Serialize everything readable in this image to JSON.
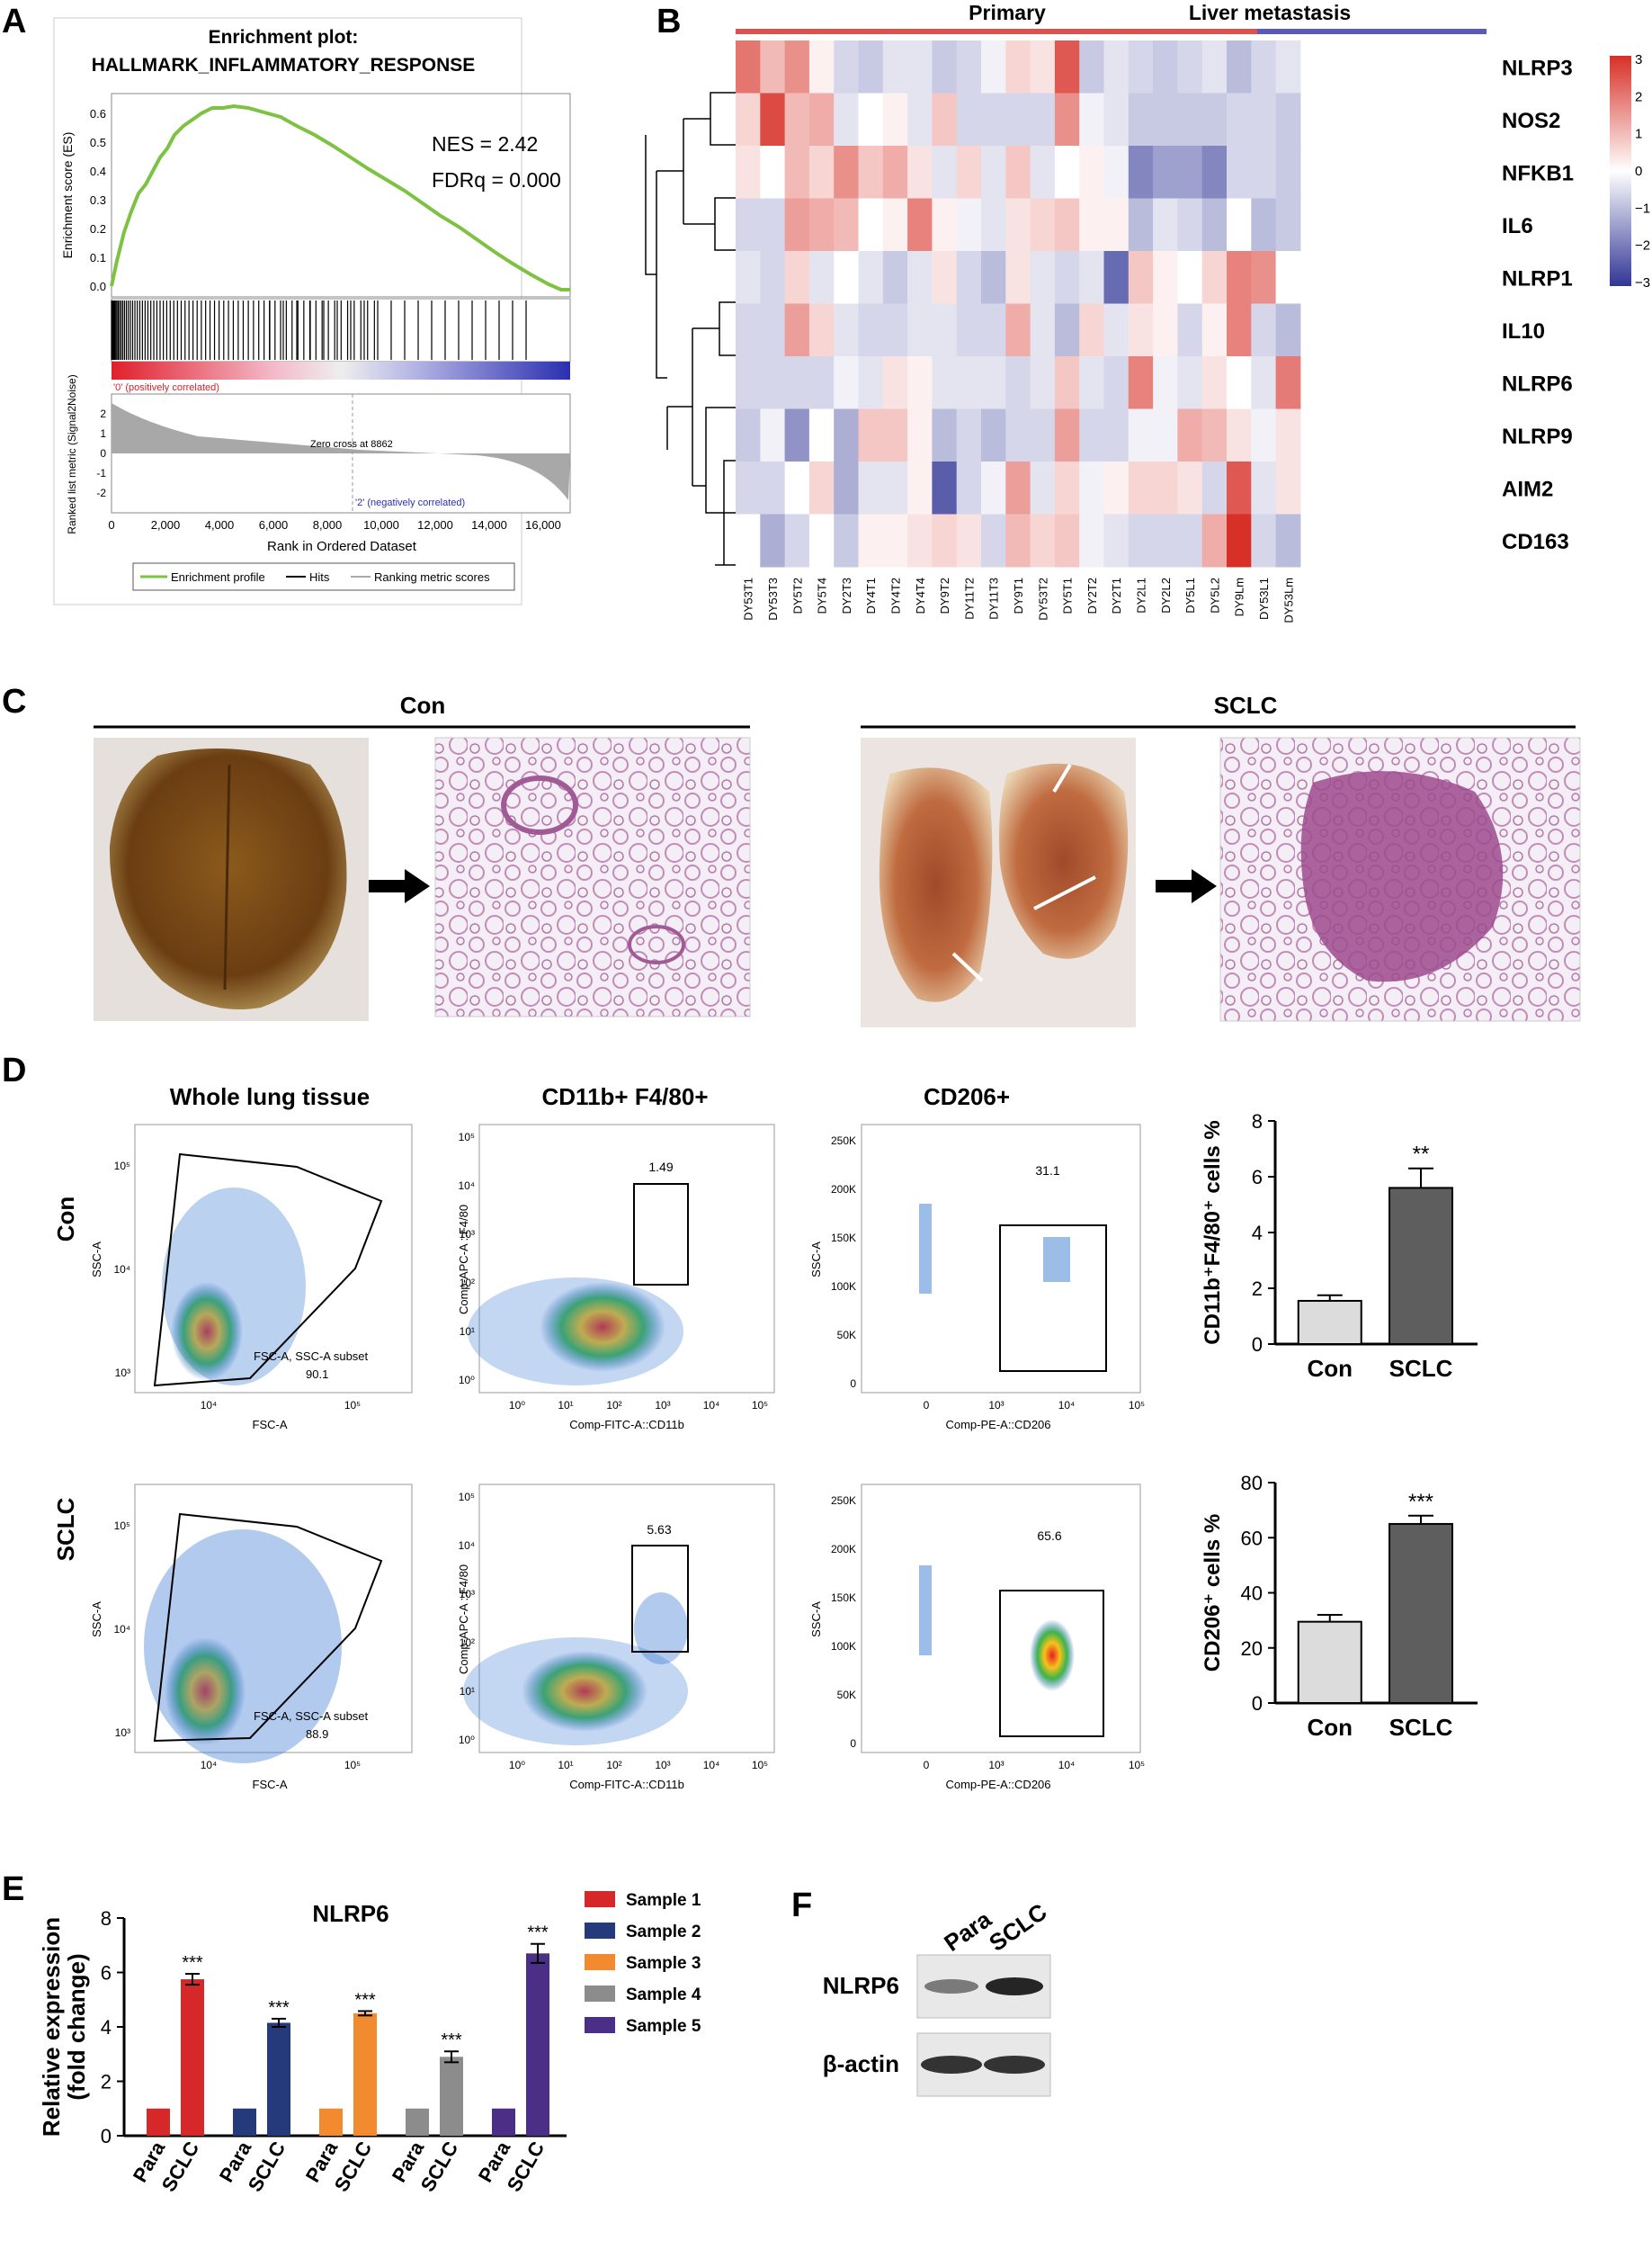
{
  "panel_labels": [
    "A",
    "B",
    "C",
    "D",
    "E",
    "F"
  ],
  "colors": {
    "gsea_curve": "#7dc242",
    "heat_high": "#d73027",
    "heat_low": "#313695",
    "primary_bar": "#d9534f",
    "metastasis_bar": "#5a5ab8",
    "con_bar": "#dcdcdc",
    "sclc_bar": "#5e5e5e",
    "he_stain": "#d4a0c8"
  },
  "panelA": {
    "title_line1": "Enrichment plot:",
    "title_line2": "HALLMARK_INFLAMMATORY_RESPONSE",
    "nes": "NES = 2.42",
    "fdr": "FDRq = 0.000",
    "es_ylabel": "Enrichment score (ES)",
    "es_ticks": [
      "0.6",
      "0.5",
      "0.4",
      "0.3",
      "0.2",
      "0.1",
      "0.0"
    ],
    "rank_ylabel": "Ranked list metric (Signal2Noise)",
    "rank_ticks": [
      "2",
      "1",
      "0",
      "-1",
      "-2"
    ],
    "x_ticks": [
      "0",
      "2,000",
      "4,000",
      "6,000",
      "8,000",
      "10,000",
      "12,000",
      "14,000",
      "16,000"
    ],
    "xlabel": "Rank in Ordered Dataset",
    "pos_label": "'0' (positively correlated)",
    "neg_label": "'2' (negatively correlated)",
    "zero_cross": "Zero cross at 8862",
    "legend": [
      "Enrichment profile",
      "Hits",
      "Ranking metric scores"
    ]
  },
  "panelB": {
    "group_primary": "Primary",
    "group_metastasis": "Liver metastasis",
    "genes": [
      "NLRP3",
      "NOS2",
      "NFKB1",
      "IL6",
      "NLRP1",
      "IL10",
      "NLRP6",
      "NLRP9",
      "AIM2",
      "CD163"
    ],
    "samples": [
      "DY53T1",
      "DY53T3",
      "DY5T2",
      "DY5T4",
      "DY2T3",
      "DY4T1",
      "DY4T2",
      "DY4T4",
      "DY9T2",
      "DY11T2",
      "DY11T3",
      "DY9T1",
      "DY53T2",
      "DY5T1",
      "DY2T2",
      "DY2T1",
      "DY2L1",
      "DY2L2",
      "DY5L1",
      "DY5L2",
      "DY9Lm",
      "DY53L1",
      "DY53Lm"
    ],
    "scale_ticks": [
      "3",
      "2",
      "1",
      "0",
      "−1",
      "−2",
      "−3"
    ],
    "values": [
      [
        2.0,
        1.0,
        1.6,
        0.2,
        -0.6,
        -0.8,
        -0.4,
        -0.4,
        -0.8,
        -0.6,
        -0.2,
        0.6,
        0.4,
        2.4,
        -0.8,
        -0.4,
        -0.6,
        -0.8,
        -0.6,
        -0.4,
        -1.0,
        -0.6,
        -0.4
      ],
      [
        0.6,
        2.6,
        1.0,
        1.2,
        -0.4,
        0.0,
        0.2,
        -0.4,
        0.8,
        -0.6,
        -0.6,
        -0.6,
        -0.6,
        1.6,
        -0.2,
        -0.4,
        -0.8,
        -0.8,
        -0.8,
        -0.8,
        -0.6,
        -0.6,
        -0.8
      ],
      [
        0.4,
        0.0,
        1.0,
        0.6,
        1.6,
        0.8,
        1.2,
        0.4,
        -0.4,
        0.6,
        -0.4,
        0.8,
        -0.4,
        0.0,
        0.2,
        -0.2,
        -1.8,
        -1.4,
        -1.4,
        -1.8,
        -0.6,
        -0.6,
        -0.8
      ],
      [
        -0.6,
        -0.6,
        1.4,
        1.2,
        1.0,
        0.0,
        0.2,
        1.8,
        0.2,
        -0.2,
        -0.4,
        0.4,
        0.6,
        0.8,
        0.2,
        0.2,
        -1.0,
        -0.4,
        -0.6,
        -1.0,
        0.0,
        -1.0,
        -0.8
      ],
      [
        -0.4,
        -0.6,
        0.6,
        -0.4,
        0.0,
        -0.4,
        -0.8,
        -0.4,
        0.4,
        -0.6,
        -1.0,
        0.4,
        -0.4,
        -0.6,
        -0.4,
        -2.2,
        0.8,
        0.2,
        0.0,
        0.6,
        1.8,
        1.6,
        0.0
      ],
      [
        -0.6,
        -0.6,
        1.4,
        0.6,
        -0.4,
        -0.6,
        -0.6,
        -0.4,
        -0.4,
        -0.6,
        -0.6,
        1.2,
        -0.4,
        -1.0,
        0.6,
        -0.4,
        0.4,
        0.2,
        -0.6,
        0.2,
        1.8,
        -0.6,
        -1.0
      ],
      [
        -0.6,
        -0.6,
        -0.6,
        -0.6,
        -0.2,
        -0.4,
        0.4,
        0.2,
        -0.4,
        -0.4,
        -0.4,
        -0.6,
        -0.4,
        0.8,
        -0.4,
        -0.6,
        1.8,
        -0.2,
        -0.4,
        0.4,
        0.0,
        -0.4,
        1.9
      ],
      [
        -0.8,
        -0.2,
        -1.6,
        0.0,
        -1.2,
        0.8,
        0.8,
        0.2,
        -1.0,
        -0.6,
        -1.0,
        -0.6,
        -0.6,
        1.4,
        -0.6,
        -0.6,
        -0.2,
        -0.2,
        1.2,
        1.0,
        0.4,
        -0.2,
        0.4
      ],
      [
        -0.6,
        -0.6,
        0.0,
        0.6,
        -1.2,
        -0.4,
        -0.4,
        0.2,
        -2.4,
        -0.6,
        -0.2,
        1.4,
        -0.4,
        0.6,
        -0.2,
        0.2,
        0.6,
        0.6,
        0.4,
        -0.6,
        2.4,
        -0.4,
        0.4
      ],
      [
        0.0,
        -1.2,
        -0.6,
        0.0,
        -0.8,
        0.2,
        0.2,
        0.4,
        0.6,
        0.4,
        -0.6,
        1.0,
        0.6,
        0.8,
        -0.2,
        -0.4,
        -0.6,
        -0.6,
        -0.6,
        1.2,
        3.0,
        -0.6,
        -1.0
      ]
    ]
  },
  "panelC": {
    "con_label": "Con",
    "sclc_label": "SCLC"
  },
  "panelD": {
    "col_titles": [
      "Whole lung tissue",
      "CD11b+ F4/80+",
      "CD206+"
    ],
    "row_labels": [
      "Con",
      "SCLC"
    ],
    "fsc_axis": "FSC-A",
    "ssc_axis": "SSC-A",
    "fitc_axis": "Comp-FITC-A::CD11b",
    "apc_axis": "Comp-APC-A ::F4/80",
    "pe_axis": "Comp-PE-A::CD206",
    "gate_name": "FSC-A, SSC-A subset",
    "con_values": [
      "90.1",
      "1.49",
      "31.1"
    ],
    "sclc_values": [
      "88.9",
      "5.63",
      "65.6"
    ],
    "log_ticks_y": [
      "10⁵",
      "10⁴",
      "10³"
    ],
    "log_ticks_x": [
      "10⁴",
      "10⁵"
    ],
    "cd11b_ticks_x": [
      "10⁰",
      "10¹",
      "10²",
      "10³",
      "10⁴",
      "10⁵"
    ],
    "cd11b_ticks_y": [
      "10⁵",
      "10⁴",
      "10³",
      "10²",
      "10¹",
      "10⁰"
    ],
    "ssc_ticks": [
      "250K",
      "200K",
      "150K",
      "100K",
      "50K",
      "0"
    ],
    "cd206_ticks_x": [
      "0",
      "10³",
      "10⁴",
      "10⁵"
    ]
  },
  "chart_data": [
    {
      "type": "bar",
      "categories": [
        "Con",
        "SCLC"
      ],
      "values": [
        1.55,
        5.6
      ],
      "errors": [
        0.2,
        0.7
      ],
      "ylabel": "CD11b⁺F4/80⁺ cells %",
      "ylim": [
        0,
        8
      ],
      "yticks": [
        "0",
        "2",
        "4",
        "6",
        "8"
      ],
      "annotation": "**"
    },
    {
      "type": "bar",
      "categories": [
        "Con",
        "SCLC"
      ],
      "values": [
        29.5,
        65
      ],
      "errors": [
        2.5,
        3
      ],
      "ylabel": "CD206⁺ cells %",
      "ylim": [
        0,
        80
      ],
      "yticks": [
        "0",
        "20",
        "40",
        "60",
        "80"
      ],
      "annotation": "***"
    },
    {
      "type": "bar",
      "title": "NLRP6",
      "ylabel": "Relative expression (fold change)",
      "ylim": [
        0,
        8
      ],
      "yticks": [
        "0",
        "2",
        "4",
        "6",
        "8"
      ],
      "categories": [
        "Para",
        "SCLC"
      ],
      "series": [
        {
          "name": "Sample 1",
          "color": "#d62828",
          "values": [
            1,
            5.75
          ],
          "errors": [
            0,
            0.2
          ]
        },
        {
          "name": "Sample 2",
          "color": "#253a7a",
          "values": [
            1,
            4.15
          ],
          "errors": [
            0,
            0.15
          ]
        },
        {
          "name": "Sample 3",
          "color": "#f28b30",
          "values": [
            1,
            4.5
          ],
          "errors": [
            0,
            0.08
          ]
        },
        {
          "name": "Sample 4",
          "color": "#8c8c8c",
          "values": [
            1,
            2.9
          ],
          "errors": [
            0,
            0.2
          ]
        },
        {
          "name": "Sample 5",
          "color": "#4b2f86",
          "values": [
            1,
            6.7
          ],
          "errors": [
            0,
            0.35
          ]
        }
      ],
      "annotation": "***"
    }
  ],
  "panelF": {
    "lanes": [
      "Para",
      "SCLC"
    ],
    "rows": [
      "NLRP6",
      "β-actin"
    ]
  }
}
